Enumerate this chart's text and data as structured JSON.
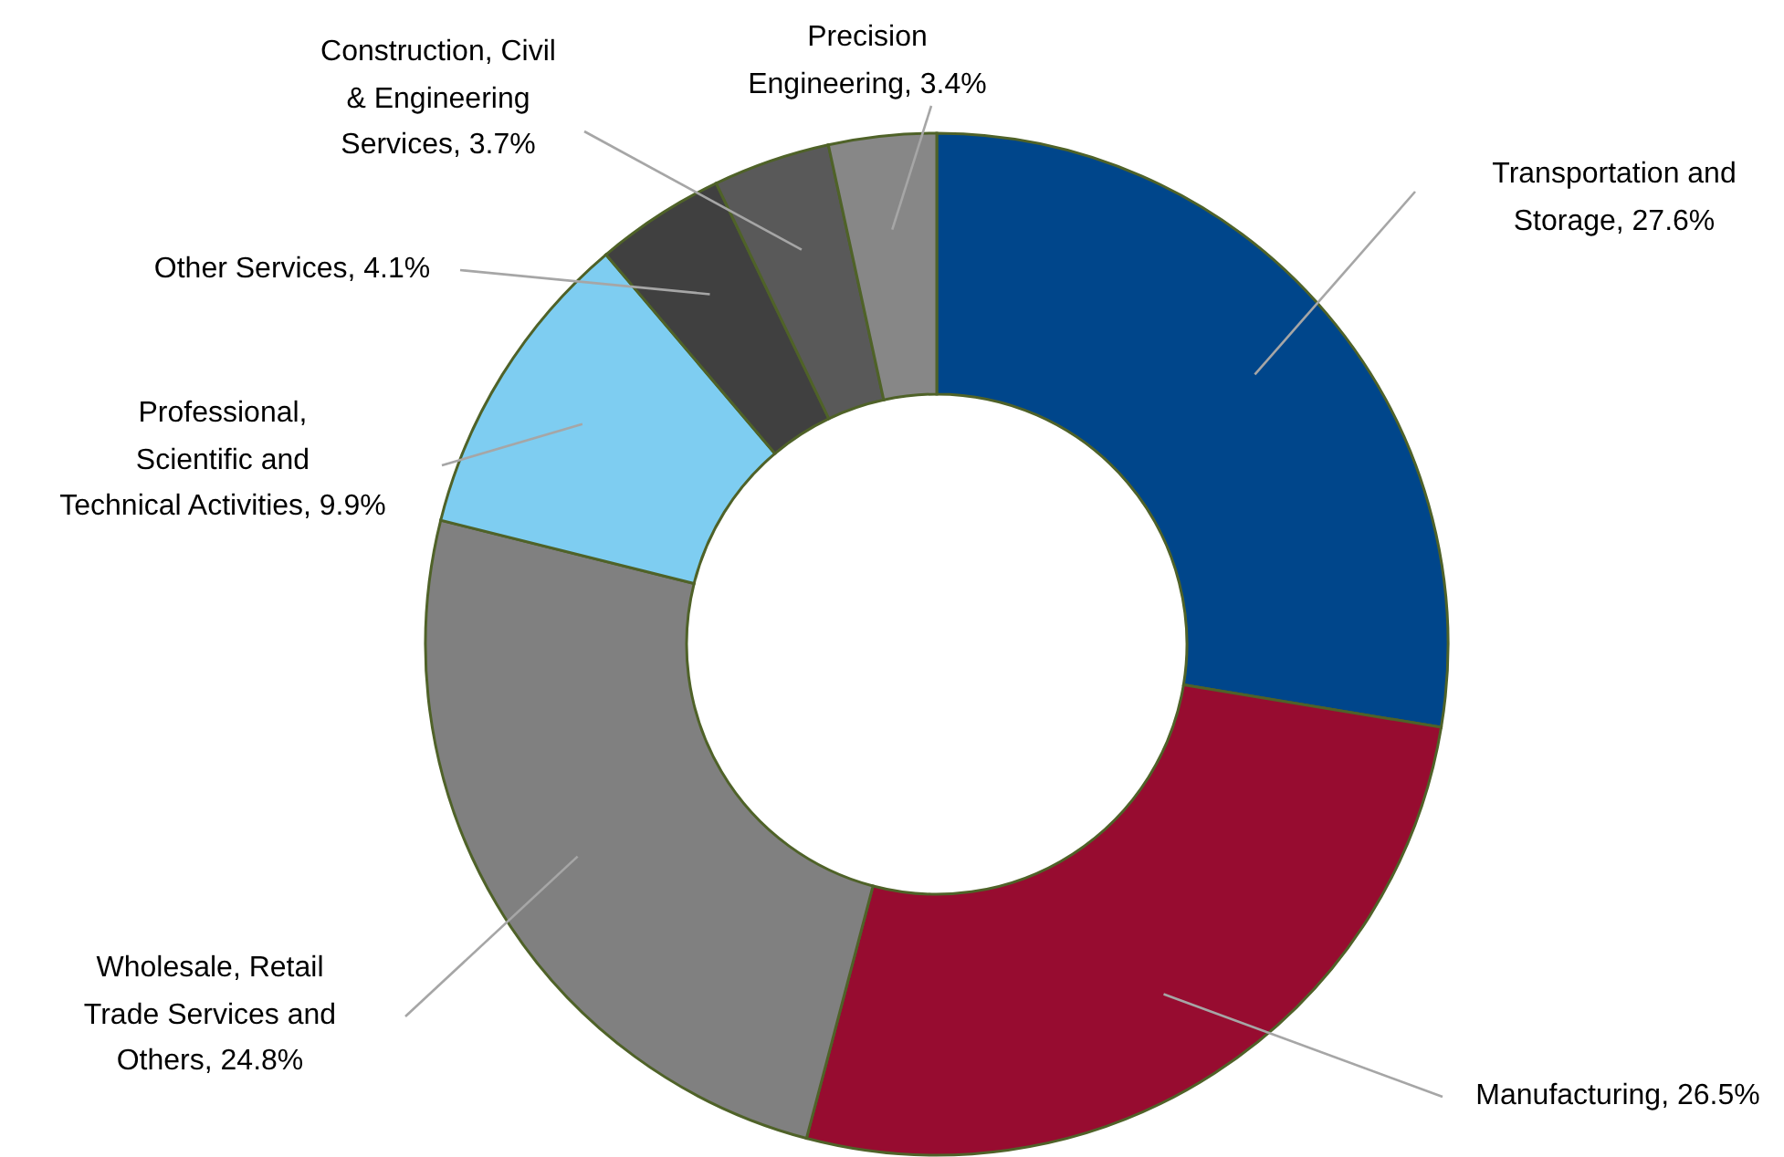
{
  "chart_data": {
    "type": "donut",
    "categories": [
      "Transportation and Storage",
      "Manufacturing",
      "Wholesale, Retail Trade Services and Others",
      "Professional, Scientific and Technical Activities",
      "Other Services",
      "Construction, Civil & Engineering Services",
      "Precision Engineering"
    ],
    "values": [
      27.6,
      26.5,
      24.8,
      9.9,
      4.1,
      3.7,
      3.4
    ],
    "value_labels": [
      "27.6%",
      "26.5%",
      "24.8%",
      "9.9%",
      "4.1%",
      "3.7%",
      "3.4%"
    ],
    "colors": [
      "#00468b",
      "#970c30",
      "#808080",
      "#7ecdf1",
      "#404040",
      "#595959",
      "#878787"
    ],
    "legend": false
  }
}
